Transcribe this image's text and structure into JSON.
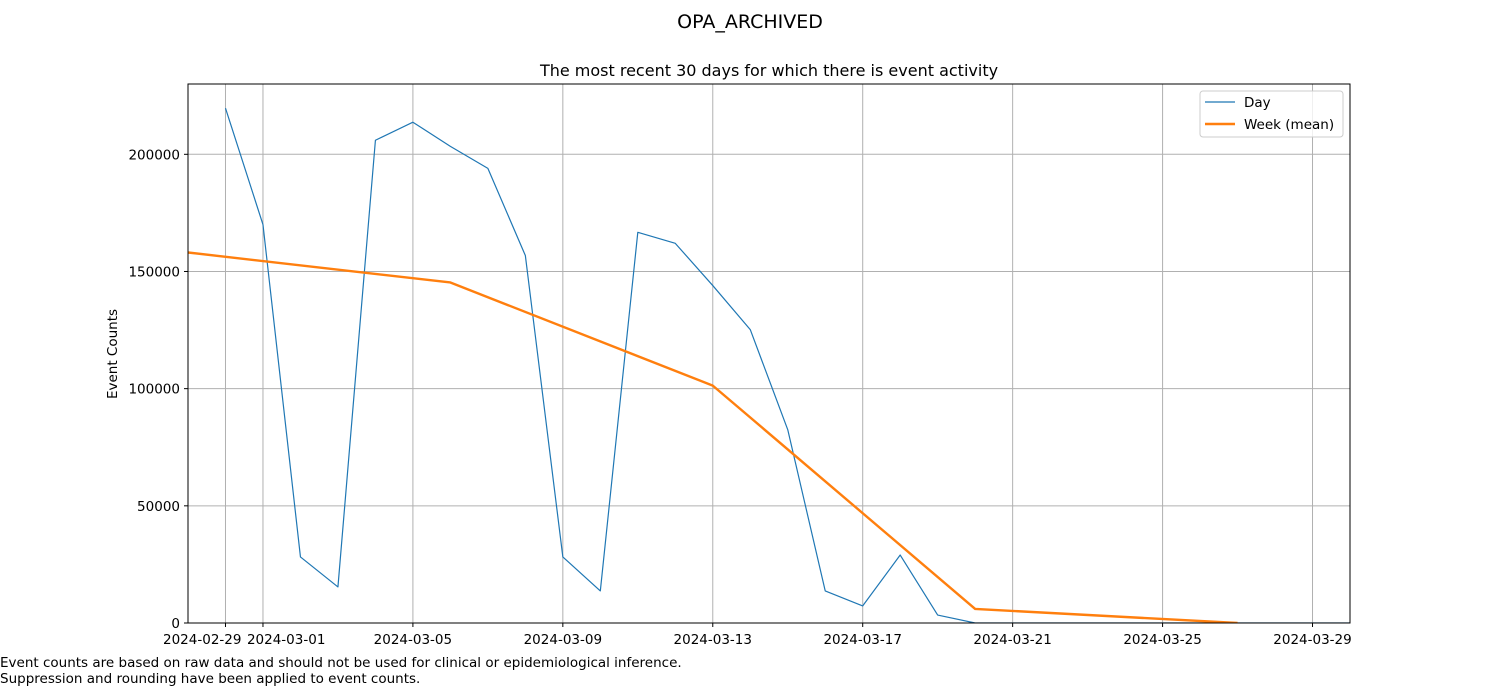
{
  "chart_data": {
    "type": "line",
    "suptitle": "OPA_ARCHIVED",
    "title": "The most recent 30 days for which there is event activity",
    "xlabel": "",
    "ylabel": "Event Counts",
    "xlim": [
      "2024-02-28",
      "2024-03-30"
    ],
    "ylim": [
      0,
      230000
    ],
    "grid": true,
    "legend_position": "top-right",
    "x_ticks": [
      "2024-02-29",
      "2024-03-01",
      "2024-03-05",
      "2024-03-09",
      "2024-03-13",
      "2024-03-17",
      "2024-03-21",
      "2024-03-25",
      "2024-03-29"
    ],
    "y_ticks": [
      0,
      50000,
      100000,
      150000,
      200000
    ],
    "series": [
      {
        "name": "Day",
        "color": "#1f77b4",
        "x": [
          "2024-02-29",
          "2024-03-01",
          "2024-03-02",
          "2024-03-03",
          "2024-03-04",
          "2024-03-05",
          "2024-03-06",
          "2024-03-07",
          "2024-03-08",
          "2024-03-09",
          "2024-03-10",
          "2024-03-11",
          "2024-03-12",
          "2024-03-13",
          "2024-03-14",
          "2024-03-15",
          "2024-03-16",
          "2024-03-17",
          "2024-03-18",
          "2024-03-19",
          "2024-03-20",
          "2024-03-21",
          "2024-03-22",
          "2024-03-23",
          "2024-03-24",
          "2024-03-25",
          "2024-03-26",
          "2024-03-27",
          "2024-03-28",
          "2024-03-29",
          "2024-03-30"
        ],
        "values": [
          219700,
          170000,
          28200,
          15400,
          206000,
          213700,
          203400,
          194000,
          156800,
          28200,
          13700,
          166700,
          162000,
          144000,
          125200,
          82500,
          13700,
          7300,
          29000,
          3400,
          0,
          0,
          0,
          0,
          0,
          0,
          0,
          0,
          0,
          0,
          0
        ]
      },
      {
        "name": "Week (mean)",
        "color": "#ff7f0e",
        "x": [
          "2024-02-28",
          "2024-03-06",
          "2024-03-13",
          "2024-03-20",
          "2024-03-27"
        ],
        "values": [
          158100,
          145300,
          101300,
          6000,
          0
        ]
      }
    ]
  },
  "footnotes": [
    "Event counts are based on raw data and should not be used for clinical or epidemiological inference.",
    "Suppression and rounding have been applied to event counts."
  ]
}
